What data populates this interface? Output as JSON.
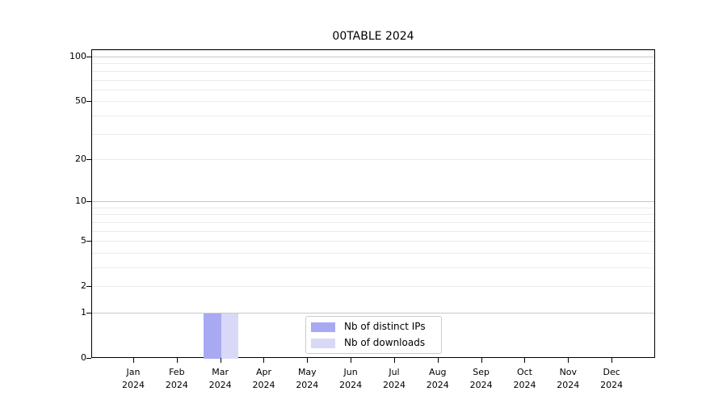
{
  "chart_data": {
    "type": "bar",
    "title": "00TABLE 2024",
    "categories": [
      "Jan",
      "Feb",
      "Mar",
      "Apr",
      "May",
      "Jun",
      "Jul",
      "Aug",
      "Sep",
      "Oct",
      "Nov",
      "Dec"
    ],
    "year_label": "2024",
    "series": [
      {
        "name": "Nb of distinct IPs",
        "color": "#a9a9f3",
        "values": [
          0,
          0,
          1,
          0,
          0,
          0,
          0,
          0,
          0,
          0,
          0,
          0
        ]
      },
      {
        "name": "Nb of downloads",
        "color": "#d9d9f7",
        "values": [
          0,
          0,
          1,
          0,
          0,
          0,
          0,
          0,
          0,
          0,
          0,
          0
        ]
      }
    ],
    "xlabel": "",
    "ylabel": "",
    "yscale": "log1p",
    "ylim": [
      0,
      112
    ],
    "yticks": [
      0,
      1,
      2,
      5,
      10,
      20,
      50,
      100
    ],
    "grid": {
      "major": [
        1,
        10,
        100
      ],
      "minor": [
        2,
        3,
        4,
        5,
        6,
        7,
        8,
        9,
        20,
        30,
        40,
        50,
        60,
        70,
        80,
        90,
        110
      ]
    },
    "legend_position": "lower center",
    "grid_on": true
  },
  "colors": {
    "background": "#ffffff",
    "spine": "#000000",
    "grid_major": "#c8c8c8",
    "grid_minor": "#ebebeb",
    "text": "#000000",
    "legend_border": "#cccccc"
  }
}
